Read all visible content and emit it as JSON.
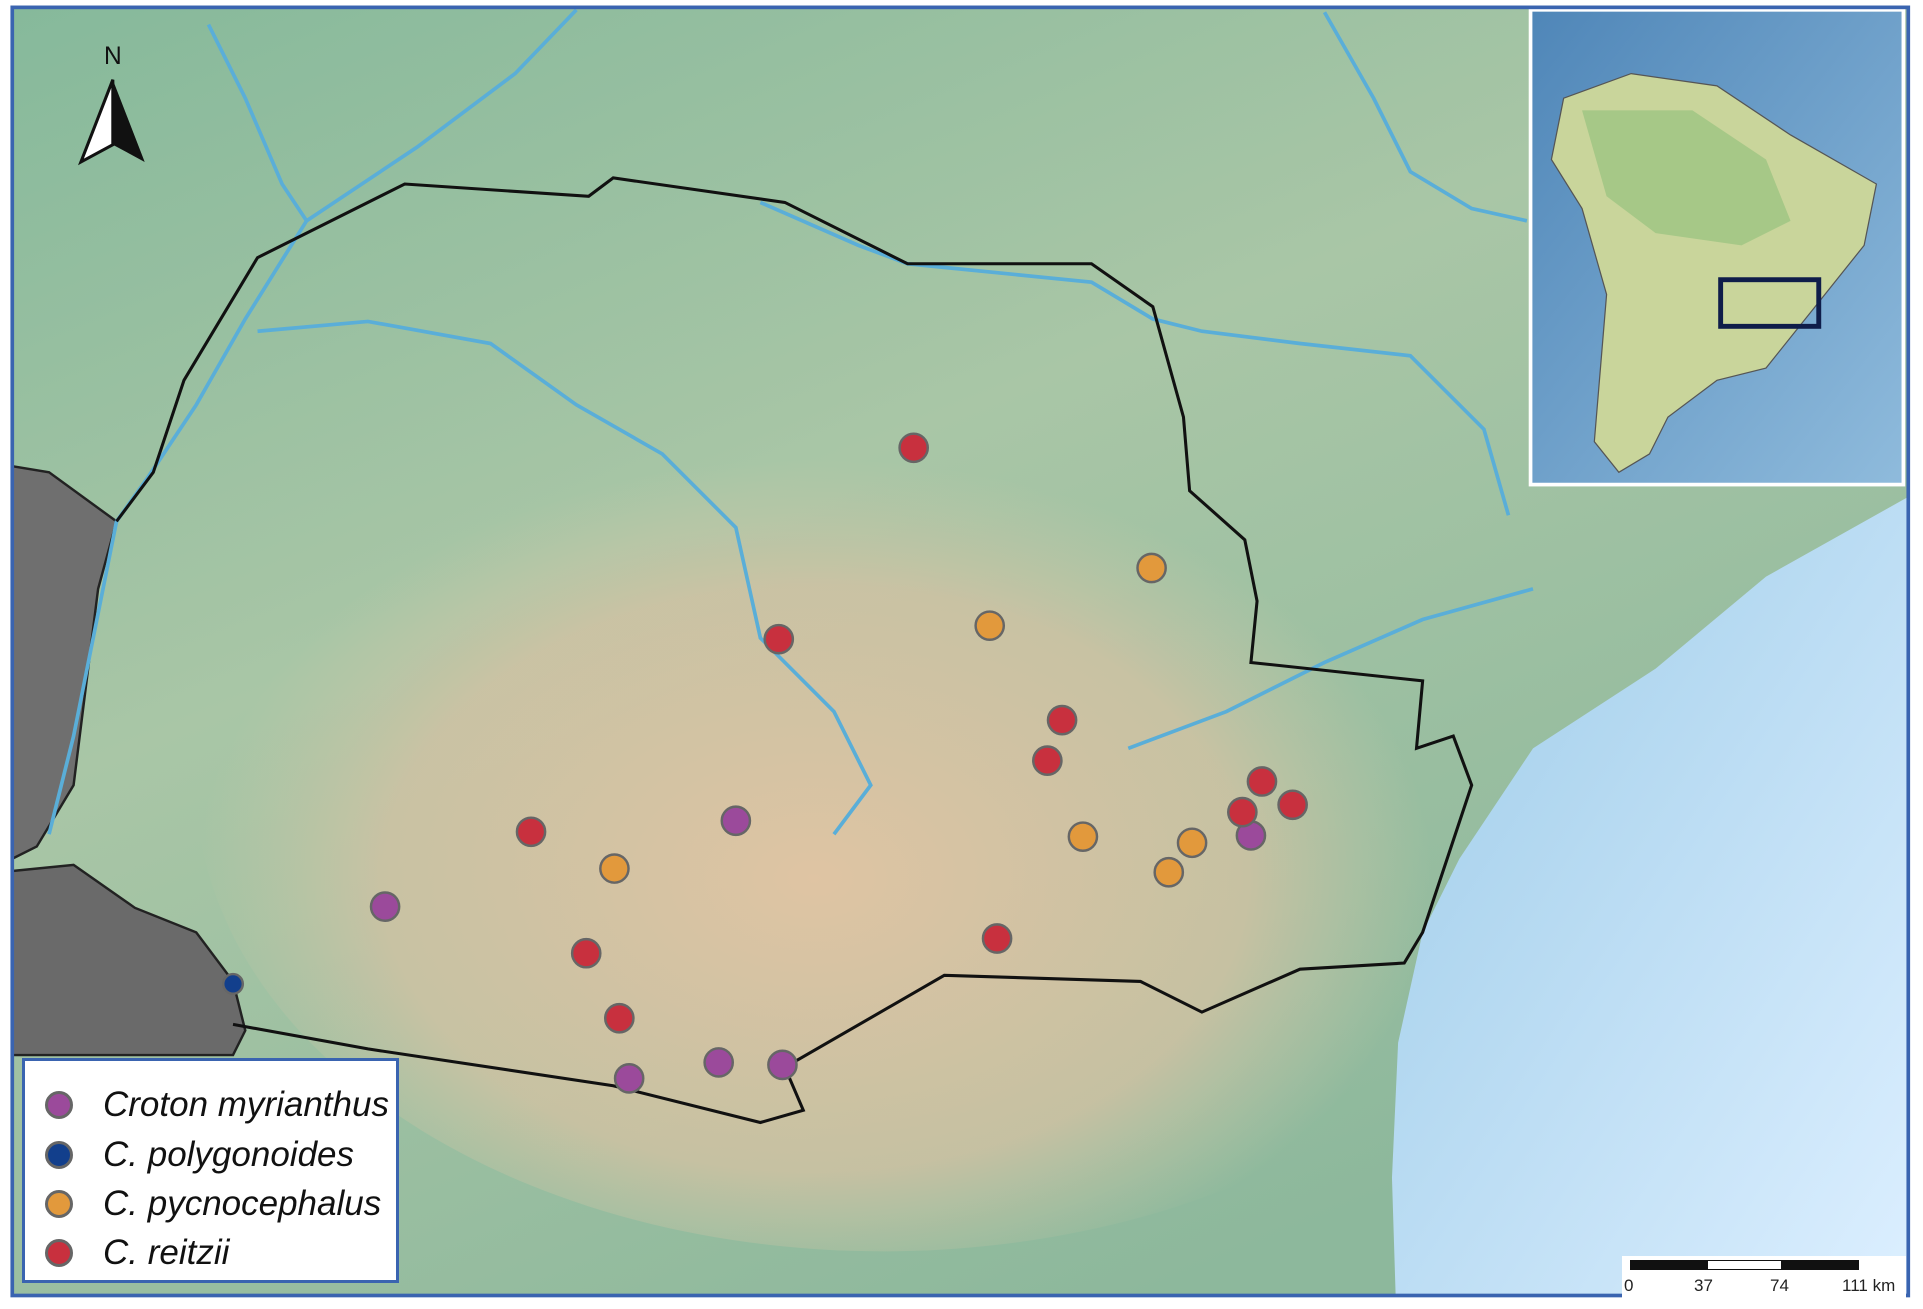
{
  "north_arrow": {
    "label": "N"
  },
  "legend": {
    "items": [
      {
        "label": "Croton myrianthus",
        "color": "#9b4a9b"
      },
      {
        "label": "C. polygonoides",
        "color": "#123f8c"
      },
      {
        "label": "C. pycnocephalus",
        "color": "#e2993c"
      },
      {
        "label": "C. reitzii",
        "color": "#c8303e"
      }
    ]
  },
  "scale_bar": {
    "ticks": [
      "0",
      "37",
      "74",
      "111 km"
    ]
  },
  "colors": {
    "frame": "#3a64b0",
    "ocean": "#bcdcf0",
    "land": "#8fbf9f",
    "highland": "#dcc3a2",
    "neighbor": "#6e6e6e",
    "river": "#5aaed8"
  }
}
